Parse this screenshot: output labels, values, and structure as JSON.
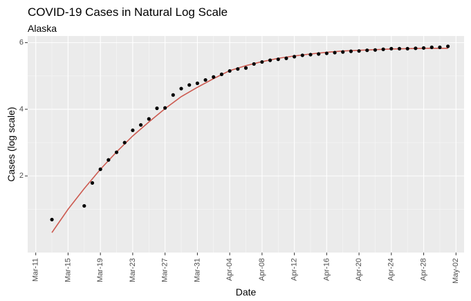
{
  "chart_data": {
    "type": "scatter",
    "title": "COVID-19 Cases in Natural Log Scale",
    "subtitle": "Alaska",
    "xlabel": "Date",
    "ylabel": "Cases (log scale)",
    "xlim": [
      "2020-03-10",
      "2020-05-03"
    ],
    "ylim": [
      -0.3,
      6.2
    ],
    "grid": true,
    "x_ticks": [
      "2020-03-11",
      "2020-03-15",
      "2020-03-19",
      "2020-03-23",
      "2020-03-27",
      "2020-03-31",
      "2020-04-04",
      "2020-04-08",
      "2020-04-12",
      "2020-04-16",
      "2020-04-20",
      "2020-04-24",
      "2020-04-28",
      "2020-05-02"
    ],
    "x_tick_labels": [
      "Mar-11",
      "Mar-15",
      "Mar-19",
      "Mar-23",
      "Mar-27",
      "Mar-31",
      "Apr-04",
      "Apr-08",
      "Apr-12",
      "Apr-16",
      "Apr-20",
      "Apr-24",
      "Apr-28",
      "May-02"
    ],
    "y_ticks": [
      2,
      4,
      6
    ],
    "y_tick_labels": [
      "2",
      "4",
      "6"
    ],
    "points_color": "#000000",
    "points": {
      "x": [
        "2020-03-13",
        "2020-03-17",
        "2020-03-18",
        "2020-03-19",
        "2020-03-20",
        "2020-03-21",
        "2020-03-22",
        "2020-03-23",
        "2020-03-24",
        "2020-03-25",
        "2020-03-26",
        "2020-03-27",
        "2020-03-28",
        "2020-03-29",
        "2020-03-30",
        "2020-03-31",
        "2020-04-01",
        "2020-04-02",
        "2020-04-03",
        "2020-04-04",
        "2020-04-05",
        "2020-04-06",
        "2020-04-07",
        "2020-04-08",
        "2020-04-09",
        "2020-04-10",
        "2020-04-11",
        "2020-04-12",
        "2020-04-13",
        "2020-04-14",
        "2020-04-15",
        "2020-04-16",
        "2020-04-17",
        "2020-04-18",
        "2020-04-19",
        "2020-04-20",
        "2020-04-21",
        "2020-04-22",
        "2020-04-23",
        "2020-04-24",
        "2020-04-25",
        "2020-04-26",
        "2020-04-27",
        "2020-04-28",
        "2020-04-29",
        "2020-04-30",
        "2020-05-01"
      ],
      "y": [
        0.69,
        1.1,
        1.79,
        2.2,
        2.48,
        2.71,
        3.0,
        3.37,
        3.53,
        3.71,
        4.03,
        4.04,
        4.43,
        4.62,
        4.73,
        4.78,
        4.88,
        4.97,
        5.05,
        5.15,
        5.21,
        5.24,
        5.36,
        5.42,
        5.47,
        5.5,
        5.53,
        5.58,
        5.62,
        5.64,
        5.66,
        5.68,
        5.7,
        5.72,
        5.74,
        5.75,
        5.77,
        5.78,
        5.8,
        5.82,
        5.82,
        5.82,
        5.83,
        5.84,
        5.86,
        5.86,
        5.89
      ]
    },
    "fit_color": "#cc5a50",
    "fit": {
      "x": [
        "2020-03-13",
        "2020-03-15",
        "2020-03-17",
        "2020-03-19",
        "2020-03-21",
        "2020-03-23",
        "2020-03-25",
        "2020-03-27",
        "2020-03-29",
        "2020-03-31",
        "2020-04-02",
        "2020-04-04",
        "2020-04-06",
        "2020-04-08",
        "2020-04-10",
        "2020-04-12",
        "2020-04-14",
        "2020-04-16",
        "2020-04-18",
        "2020-04-20",
        "2020-04-22",
        "2020-04-24",
        "2020-04-26",
        "2020-04-28",
        "2020-04-30",
        "2020-05-01"
      ],
      "y": [
        0.3,
        1.0,
        1.62,
        2.2,
        2.72,
        3.2,
        3.62,
        4.02,
        4.38,
        4.66,
        4.92,
        5.16,
        5.31,
        5.43,
        5.53,
        5.6,
        5.66,
        5.71,
        5.75,
        5.77,
        5.79,
        5.81,
        5.82,
        5.83,
        5.83,
        5.83
      ]
    }
  }
}
